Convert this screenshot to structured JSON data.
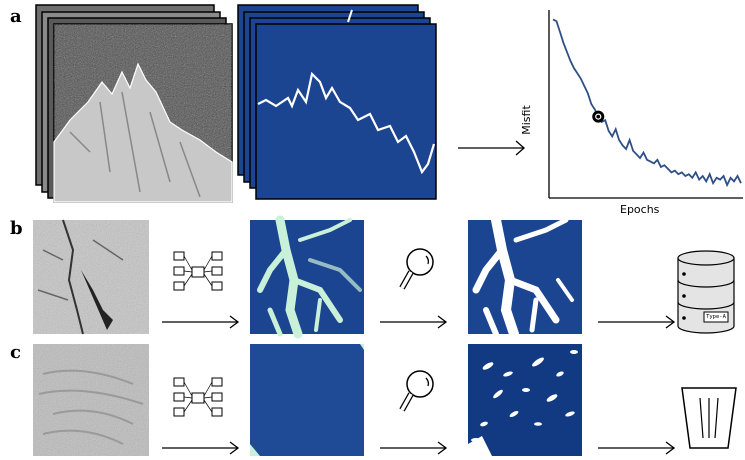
{
  "panels": {
    "a": {
      "label": "a",
      "chart_data": {
        "type": "line",
        "title": "",
        "xlabel": "Epochs",
        "ylabel": "Misfit",
        "series": [
          {
            "values": [
              0.97,
              0.96,
              0.9,
              0.84,
              0.79,
              0.74,
              0.7,
              0.67,
              0.64,
              0.6,
              0.56,
              0.5,
              0.47,
              0.43,
              0.4,
              0.41,
              0.35,
              0.32,
              0.36,
              0.3,
              0.27,
              0.25,
              0.3,
              0.24,
              0.22,
              0.2,
              0.23,
              0.19,
              0.18,
              0.17,
              0.19,
              0.15,
              0.16,
              0.14,
              0.12,
              0.13,
              0.11,
              0.12,
              0.1,
              0.11,
              0.09,
              0.12,
              0.08,
              0.1,
              0.07,
              0.11,
              0.06,
              0.09,
              0.08,
              0.1,
              0.05,
              0.09,
              0.07,
              0.1,
              0.06
            ],
            "color": "#2e4f87"
          }
        ],
        "marker_index": 13,
        "grid": false
      }
    },
    "b": {
      "label": "b",
      "database_tag": "Type-A"
    },
    "c": {
      "label": "c"
    }
  },
  "colors": {
    "mask_blue": "#1c4591",
    "mask_blue_dark": "#123a82",
    "prediction_light": "#c9f0d8",
    "curve": "#2e4f87"
  }
}
